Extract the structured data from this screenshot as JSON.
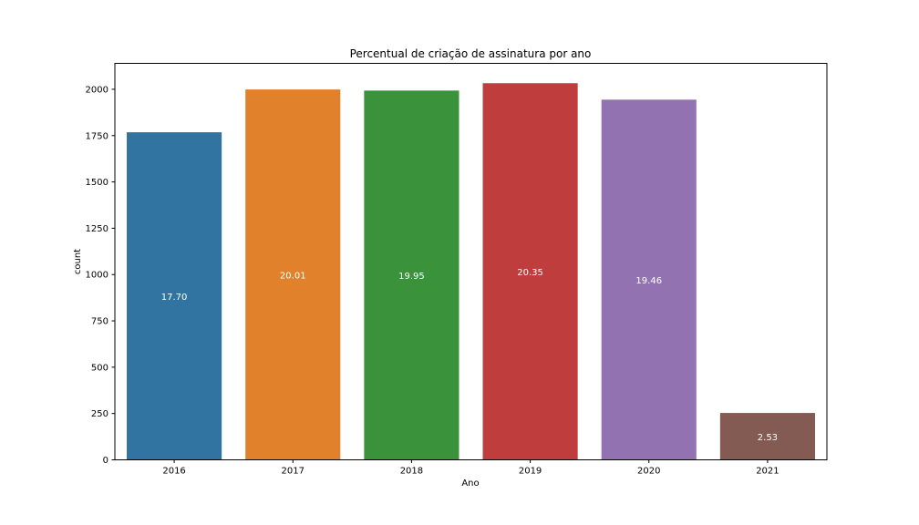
{
  "chart_data": {
    "type": "bar",
    "title": "Percentual de criação de assinatura por ano",
    "xlabel": "Ano",
    "ylabel": "count",
    "categories": [
      "2016",
      "2017",
      "2018",
      "2019",
      "2020",
      "2021"
    ],
    "values": [
      1768,
      1999,
      1993,
      2033,
      1944,
      253
    ],
    "data_labels": [
      "17.70",
      "20.01",
      "19.95",
      "20.35",
      "19.46",
      "2.53"
    ],
    "colors": [
      "#3274a1",
      "#e1812c",
      "#3a923a",
      "#c03d3e",
      "#9372b2",
      "#845b53"
    ],
    "ylim": [
      0,
      2140
    ],
    "yticks": [
      0,
      250,
      500,
      750,
      1000,
      1250,
      1500,
      1750,
      2000
    ],
    "grid": false,
    "legend": "none"
  }
}
